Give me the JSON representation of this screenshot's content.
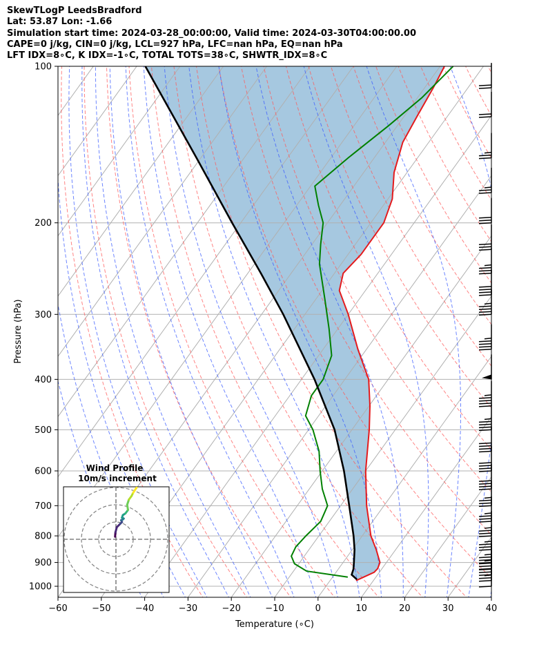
{
  "header": {
    "line1": "SkewTLogP LeedsBradford",
    "line2": "Lat: 53.87   Lon: -1.66",
    "line3": "Simulation start time: 2024-03-28_00:00:00, Valid time: 2024-03-30T04:00:00.00",
    "line4": "CAPE=0 j/kg, CIN=0 j/kg, LCL=927 hPa, LFC=nan hPa, EQ=nan hPa",
    "line5": "LFT IDX=8∘C, K IDX=-1∘C, TOTAL TOTS=38∘C, SHWTR_IDX=8∘C"
  },
  "chart_data": [
    {
      "type": "line",
      "subtype": "skew-t log-p",
      "xlabel": "Temperature (∘C)",
      "ylabel": "Pressure (hPa)",
      "x_ticks": [
        -60,
        -50,
        -40,
        -30,
        -20,
        -10,
        0,
        10,
        20,
        30,
        40
      ],
      "y_ticks": [
        100,
        200,
        300,
        400,
        500,
        600,
        700,
        800,
        900,
        1000
      ],
      "xlim": [
        -60,
        40
      ],
      "ylim": [
        1050,
        100
      ],
      "y_scale": "log",
      "grid": true,
      "series": [
        {
          "color": "#e41a1c",
          "points": [
            {
              "p": 975,
              "t": 6.0
            },
            {
              "p": 940,
              "t": 8.8
            },
            {
              "p": 925,
              "t": 9.0
            },
            {
              "p": 900,
              "t": 8.5
            },
            {
              "p": 850,
              "t": 5.5
            },
            {
              "p": 800,
              "t": 2.0
            },
            {
              "p": 700,
              "t": -4.0
            },
            {
              "p": 600,
              "t": -10.0
            },
            {
              "p": 500,
              "t": -16.0
            },
            {
              "p": 450,
              "t": -19.8
            },
            {
              "p": 400,
              "t": -24.5
            },
            {
              "p": 350,
              "t": -32.0
            },
            {
              "p": 300,
              "t": -40.0
            },
            {
              "p": 270,
              "t": -46.0
            },
            {
              "p": 250,
              "t": -48.0
            },
            {
              "p": 230,
              "t": -47.0
            },
            {
              "p": 200,
              "t": -47.0
            },
            {
              "p": 180,
              "t": -49.0
            },
            {
              "p": 160,
              "t": -53.0
            },
            {
              "p": 140,
              "t": -56.0
            },
            {
              "p": 125,
              "t": -57.0
            },
            {
              "p": 110,
              "t": -58.0
            },
            {
              "p": 100,
              "t": -59.0
            }
          ]
        },
        {
          "color": "#008000",
          "points": [
            {
              "p": 960,
              "t": 3.5
            },
            {
              "p": 935,
              "t": -7.0
            },
            {
              "p": 905,
              "t": -11.0
            },
            {
              "p": 875,
              "t": -13.0
            },
            {
              "p": 840,
              "t": -13.5
            },
            {
              "p": 800,
              "t": -13.0
            },
            {
              "p": 750,
              "t": -12.0
            },
            {
              "p": 700,
              "t": -13.0
            },
            {
              "p": 650,
              "t": -17.0
            },
            {
              "p": 600,
              "t": -20.5
            },
            {
              "p": 550,
              "t": -24.0
            },
            {
              "p": 500,
              "t": -29.0
            },
            {
              "p": 470,
              "t": -33.0
            },
            {
              "p": 430,
              "t": -35.0
            },
            {
              "p": 400,
              "t": -35.0
            },
            {
              "p": 360,
              "t": -37.0
            },
            {
              "p": 320,
              "t": -42.0
            },
            {
              "p": 280,
              "t": -48.0
            },
            {
              "p": 240,
              "t": -55.0
            },
            {
              "p": 220,
              "t": -58.0
            },
            {
              "p": 200,
              "t": -61.0
            },
            {
              "p": 185,
              "t": -65.0
            },
            {
              "p": 170,
              "t": -69.0
            },
            {
              "p": 150,
              "t": -66.0
            },
            {
              "p": 130,
              "t": -62.0
            },
            {
              "p": 115,
              "t": -59.0
            },
            {
              "p": 100,
              "t": -57.0
            }
          ]
        },
        {
          "color": "#000000",
          "points": [
            {
              "p": 970,
              "t": 6.0
            },
            {
              "p": 950,
              "t": 4.0
            },
            {
              "p": 927,
              "t": 3.5
            },
            {
              "p": 900,
              "t": 2.5
            },
            {
              "p": 850,
              "t": 0.5
            },
            {
              "p": 800,
              "t": -2.0
            },
            {
              "p": 700,
              "t": -8.0
            },
            {
              "p": 600,
              "t": -15.0
            },
            {
              "p": 500,
              "t": -24.0
            },
            {
              "p": 400,
              "t": -37.0
            },
            {
              "p": 300,
              "t": -55.0
            },
            {
              "p": 250,
              "t": -67.0
            },
            {
              "p": 200,
              "t": -82.0
            },
            {
              "p": 150,
              "t": -101.0
            },
            {
              "p": 100,
              "t": -128.0
            }
          ]
        }
      ],
      "cin_shading_color": "#a6c8e0",
      "wind_barbs": [
        {
          "p": 1000,
          "knots": 10
        },
        {
          "p": 975,
          "knots": 25
        },
        {
          "p": 950,
          "knots": 30
        },
        {
          "p": 925,
          "knots": 35
        },
        {
          "p": 900,
          "knots": 35
        },
        {
          "p": 850,
          "knots": 35
        },
        {
          "p": 800,
          "knots": 35
        },
        {
          "p": 750,
          "knots": 35
        },
        {
          "p": 700,
          "knots": 35
        },
        {
          "p": 650,
          "knots": 40
        },
        {
          "p": 600,
          "knots": 40
        },
        {
          "p": 550,
          "knots": 40
        },
        {
          "p": 500,
          "knots": 45
        },
        {
          "p": 450,
          "knots": 45
        },
        {
          "p": 400,
          "knots": 50
        },
        {
          "p": 350,
          "knots": 45
        },
        {
          "p": 300,
          "knots": 45
        },
        {
          "p": 275,
          "knots": 40
        },
        {
          "p": 250,
          "knots": 35
        },
        {
          "p": 225,
          "knots": 30
        },
        {
          "p": 200,
          "knots": 30
        },
        {
          "p": 175,
          "knots": 25
        },
        {
          "p": 150,
          "knots": 25
        },
        {
          "p": 125,
          "knots": 20
        },
        {
          "p": 110,
          "knots": 20
        }
      ]
    },
    {
      "type": "line",
      "subtype": "hodograph",
      "title": "Wind Profile",
      "subtitle": "10m/s increment",
      "rings_ms": [
        10,
        20,
        30
      ],
      "points_ms": [
        {
          "u": -0.5,
          "v": 1.5
        },
        {
          "u": -0.3,
          "v": 4.0
        },
        {
          "u": 0.5,
          "v": 7.0
        },
        {
          "u": 2.5,
          "v": 9.0
        },
        {
          "u": 3.5,
          "v": 10.0
        },
        {
          "u": 3.0,
          "v": 11.0
        },
        {
          "u": 4.0,
          "v": 11.5
        },
        {
          "u": 4.5,
          "v": 12.0
        },
        {
          "u": 3.5,
          "v": 12.5
        },
        {
          "u": 4.0,
          "v": 14.0
        },
        {
          "u": 5.5,
          "v": 15.0
        },
        {
          "u": 7.0,
          "v": 17.0
        },
        {
          "u": 6.5,
          "v": 20.0
        },
        {
          "u": 7.5,
          "v": 23.0
        },
        {
          "u": 9.0,
          "v": 25.0
        },
        {
          "u": 10.0,
          "v": 27.0
        },
        {
          "u": 12.0,
          "v": 30.0
        }
      ]
    }
  ]
}
